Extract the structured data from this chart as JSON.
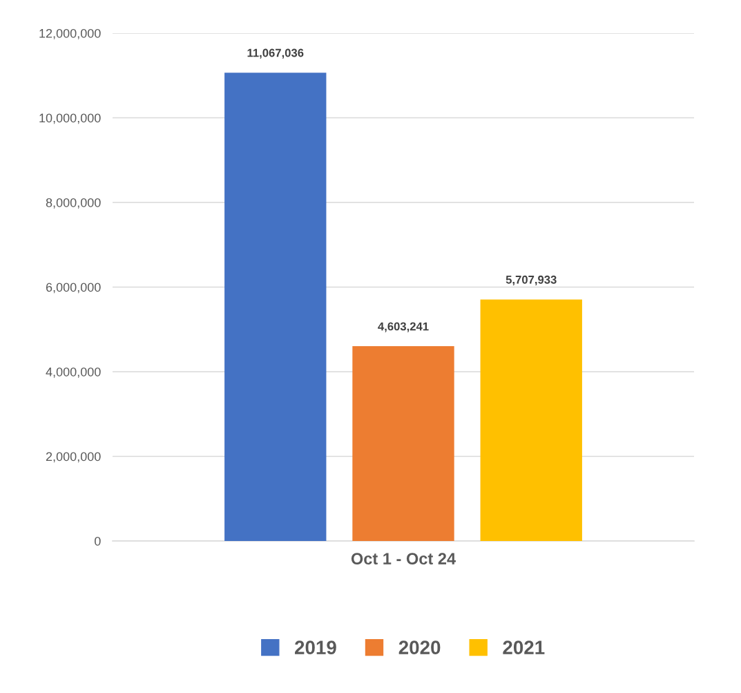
{
  "chart_data": {
    "type": "bar",
    "categories": [
      "Oct 1 - Oct 24"
    ],
    "series": [
      {
        "name": "2019",
        "color": "#4472c4",
        "values": [
          11067036
        ]
      },
      {
        "name": "2020",
        "color": "#ed7d31",
        "values": [
          4603241
        ]
      },
      {
        "name": "2021",
        "color": "#ffc000",
        "values": [
          5707933
        ]
      }
    ],
    "ylim": [
      0,
      12000000
    ],
    "yticks": [
      {
        "value": 0,
        "label": "0"
      },
      {
        "value": 2000000,
        "label": "2,000,000"
      },
      {
        "value": 4000000,
        "label": "4,000,000"
      },
      {
        "value": 6000000,
        "label": "6,000,000"
      },
      {
        "value": 8000000,
        "label": "8,000,000"
      },
      {
        "value": 10000000,
        "label": "10,000,000"
      },
      {
        "value": 12000000,
        "label": "12,000,000"
      }
    ],
    "value_labels": [
      [
        "11,067,036"
      ],
      [
        "4,603,241"
      ],
      [
        "5,707,933"
      ]
    ],
    "grid": "y",
    "legend": "bottom"
  }
}
